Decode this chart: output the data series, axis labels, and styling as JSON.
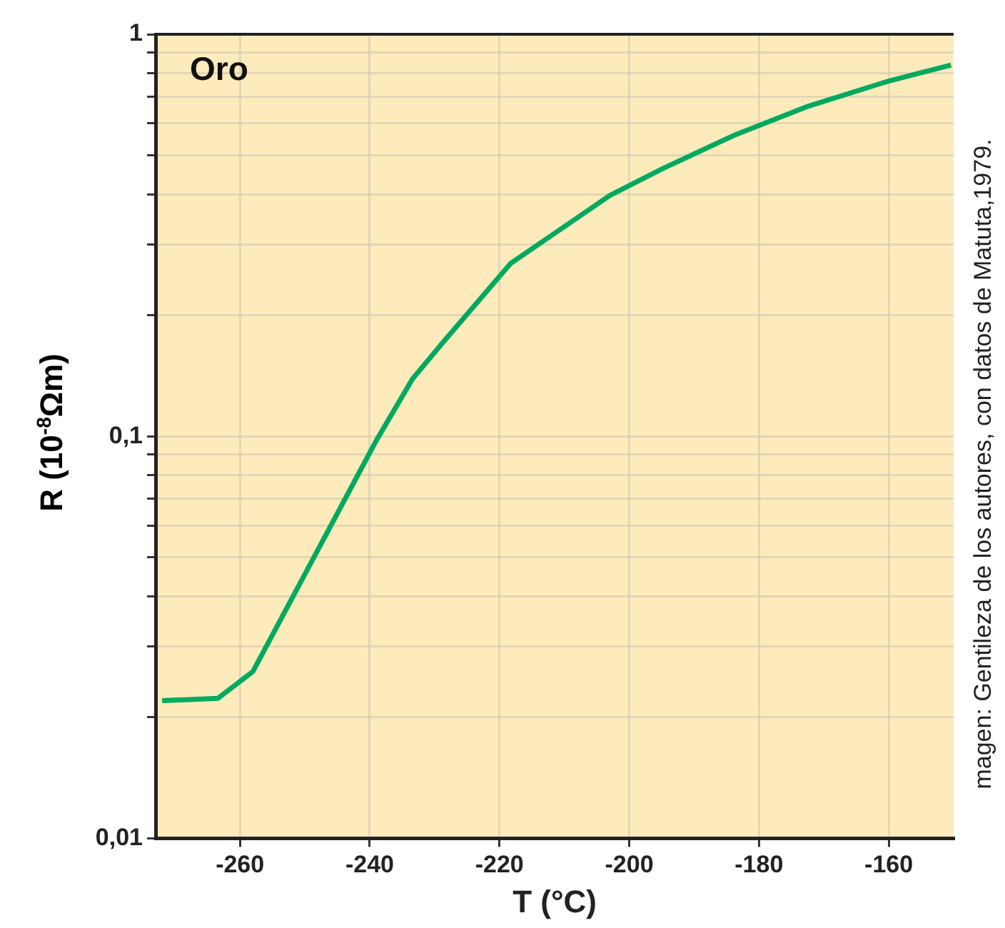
{
  "chart_data": {
    "type": "line",
    "title": "Oro",
    "xlabel": "T (°C)",
    "ylabel": "R (10$^{-8}$Ωm)",
    "annotations": [
      "magen: Gentileza de los autores, con datos de Matuta,1979."
    ],
    "series": [
      {
        "color": "#00a960",
        "x": [
          -272,
          -263.4,
          -258,
          -239,
          -233.4,
          -228.6,
          -218.3,
          -203,
          -195,
          -183.9,
          -172.7,
          -160,
          -150.4
        ],
        "values": [
          0.022,
          0.0223,
          0.026,
          0.0975,
          0.139,
          0.172,
          0.269,
          0.397,
          0.462,
          0.56,
          0.66,
          0.765,
          0.838
        ]
      }
    ],
    "xlim": [
      -273,
      -150
    ],
    "xticks": [
      -260,
      -240,
      -220,
      -200,
      -180,
      -160
    ],
    "ylim": [
      0.01,
      1
    ],
    "yticks": [
      {
        "value": 0.01,
        "label": "0,01"
      },
      {
        "value": 0.02,
        "label": null
      },
      {
        "value": 0.03,
        "label": null
      },
      {
        "value": 0.04,
        "label": null
      },
      {
        "value": 0.05,
        "label": null
      },
      {
        "value": 0.06,
        "label": null
      },
      {
        "value": 0.07,
        "label": null
      },
      {
        "value": 0.08,
        "label": null
      },
      {
        "value": 0.09,
        "label": null
      },
      {
        "value": 0.1,
        "label": "0,1"
      },
      {
        "value": 0.2,
        "label": null
      },
      {
        "value": 0.3,
        "label": null
      },
      {
        "value": 0.4,
        "label": null
      },
      {
        "value": 0.5,
        "label": null
      },
      {
        "value": 0.6,
        "label": null
      },
      {
        "value": 0.7,
        "label": null
      },
      {
        "value": 0.8,
        "label": null
      },
      {
        "value": 0.9,
        "label": null
      },
      {
        "value": 1,
        "label": "1"
      }
    ],
    "log": "y",
    "grid": true,
    "legend": false,
    "marker": "none",
    "line_style": "solid"
  }
}
